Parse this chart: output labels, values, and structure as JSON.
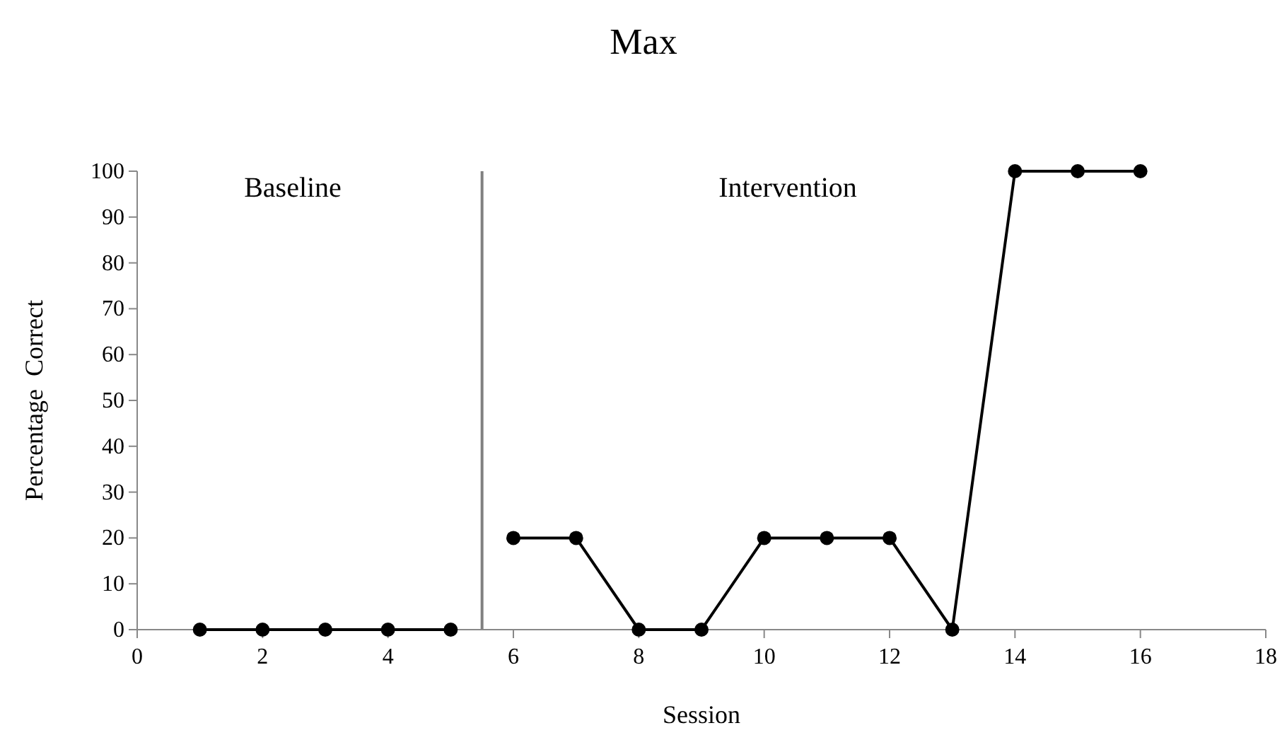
{
  "chart_data": {
    "type": "line",
    "title": "Max",
    "xlabel": "Session",
    "ylabel": "Percentage  Correct",
    "series": [
      {
        "color": "#000000",
        "x": [
          1,
          2,
          3,
          4,
          5
        ],
        "values": [
          0,
          0,
          0,
          0,
          0
        ]
      },
      {
        "color": "#000000",
        "x": [
          6,
          7,
          8,
          9,
          10,
          11,
          12,
          13,
          14,
          15,
          16
        ],
        "values": [
          20,
          20,
          0,
          0,
          20,
          20,
          20,
          0,
          100,
          100,
          100
        ]
      }
    ],
    "xlim": [
      0,
      18
    ],
    "xticks": [
      0,
      2,
      4,
      6,
      8,
      10,
      12,
      14,
      16,
      18
    ],
    "ylim": [
      0,
      100
    ],
    "yticks": [
      0,
      10,
      20,
      30,
      40,
      50,
      60,
      70,
      80,
      90,
      100
    ],
    "ref_lines": [
      {
        "axis": "x",
        "value": 5.5,
        "color": "#808080"
      }
    ],
    "annotations": [
      "Baseline",
      "Intervention"
    ],
    "grid": false,
    "marker": "circle",
    "line_style": "solid"
  }
}
